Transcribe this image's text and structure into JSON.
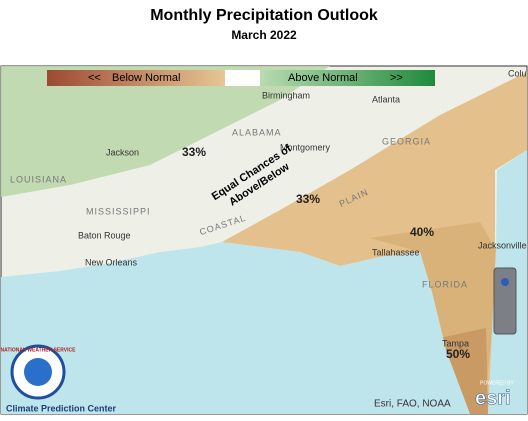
{
  "header": {
    "title": "Monthly Precipitation Outlook",
    "subtitle": "March 2022"
  },
  "legend": {
    "below_arrow": "<<",
    "below": "Below Normal",
    "above": "Above Normal",
    "above_arrow": ">>"
  },
  "map": {
    "cities": [
      "Birmingham",
      "Atlanta",
      "Montgomery",
      "Jackson",
      "Baton Rouge",
      "New Orleans",
      "Tallahassee",
      "Jacksonville",
      "Tampa",
      "Colu"
    ],
    "states": [
      "ALABAMA",
      "GEORGIA",
      "MISSISSIPPI",
      "LOUISIANA",
      "FLORIDA",
      "COASTAL",
      "PLAIN"
    ],
    "probabilities": [
      "33%",
      "33%",
      "40%",
      "50%"
    ],
    "equal_chances": [
      "Equal Chances of",
      "Above/Below"
    ]
  },
  "footer": {
    "credit": "Esri, FAO, NOAA",
    "powered_by": "POWERED BY",
    "esri": "esri",
    "agency": "Climate Prediction Center",
    "nws": "NATIONAL WEATHER SERVICE"
  }
}
